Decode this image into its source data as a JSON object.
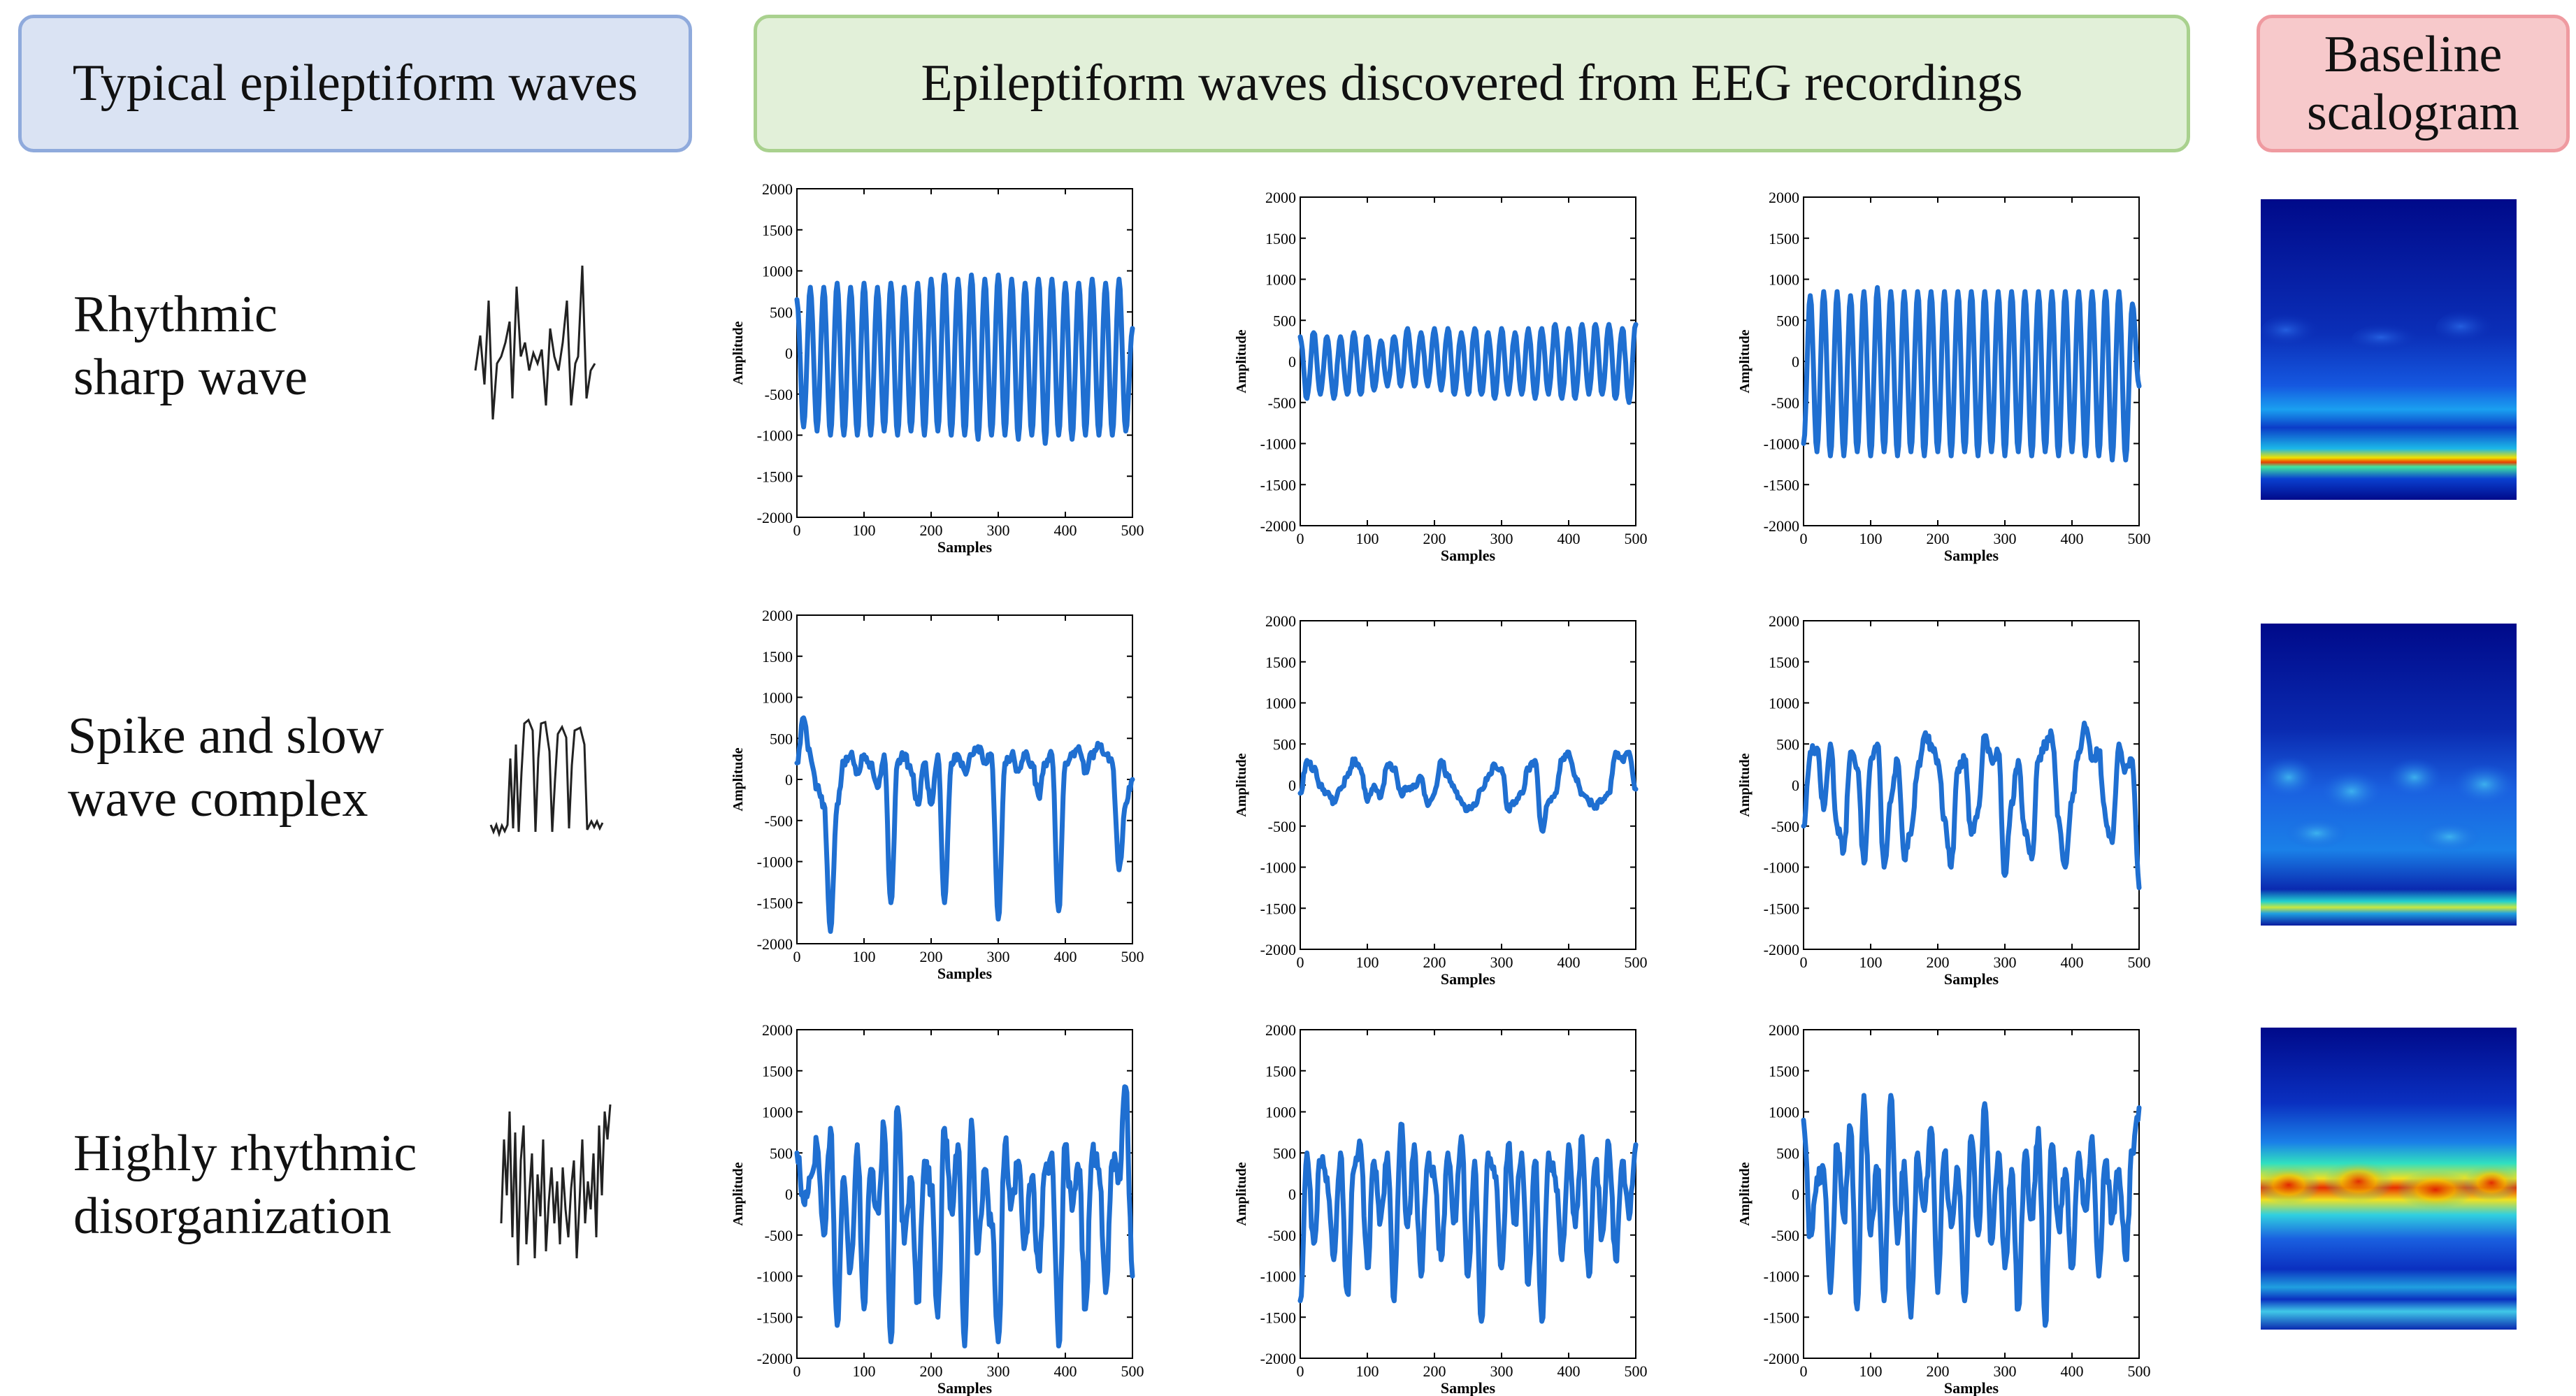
{
  "headers": {
    "typical": "Typical epileptiform waves",
    "discovered": "Epileptiform waves discovered from EEG recordings",
    "baseline_line1": "Baseline",
    "baseline_line2": "scalogram"
  },
  "rows": [
    {
      "line1": "Rhythmic",
      "line2": "sharp wave"
    },
    {
      "line1": "Spike and slow",
      "line2": "wave complex"
    },
    {
      "line1": "Highly rhythmic",
      "line2": "disorganization"
    }
  ],
  "axes": {
    "xlabel": "Samples",
    "ylabel": "Amplitude",
    "xticks": [
      0,
      100,
      200,
      300,
      400,
      500
    ],
    "yticks": [
      2000,
      1500,
      1000,
      500,
      0,
      -500,
      -1000,
      -1500,
      -2000
    ],
    "xlim": [
      0,
      500
    ],
    "ylim": [
      -2000,
      2000
    ]
  },
  "colors": {
    "signal": "#1f6fd1",
    "sketch": "#222222",
    "scalogram_bg": "#0a2a9a"
  },
  "chart_data": [
    {
      "type": "line",
      "row": 1,
      "col": 1,
      "xlabel": "Samples",
      "ylabel": "Amplitude",
      "xlim": [
        0,
        500
      ],
      "ylim": [
        -2000,
        2000
      ],
      "grid": false,
      "pattern": {
        "kind": "rhythmic",
        "period": 20,
        "pos": 850,
        "neg": -1000,
        "noise": 40,
        "offset": 0,
        "seed": 3
      },
      "x": [
        0,
        10,
        20,
        30,
        40,
        50,
        60,
        70,
        80,
        90,
        100,
        110,
        120,
        130,
        140,
        150,
        160,
        170,
        180,
        190,
        200,
        210,
        220,
        230,
        240,
        250,
        260,
        270,
        280,
        290,
        300,
        310,
        320,
        330,
        340,
        350,
        360,
        370,
        380,
        390,
        400,
        410,
        420,
        430,
        440,
        450,
        460,
        470,
        480,
        490,
        500
      ],
      "y": [
        650,
        -900,
        800,
        -950,
        800,
        -1000,
        850,
        -1000,
        800,
        -1000,
        850,
        -1000,
        800,
        -950,
        850,
        -1000,
        800,
        -950,
        850,
        -1000,
        900,
        -950,
        950,
        -1000,
        900,
        -1000,
        950,
        -1050,
        900,
        -1000,
        950,
        -1000,
        900,
        -1050,
        850,
        -1000,
        900,
        -1100,
        900,
        -1000,
        850,
        -1050,
        850,
        -1000,
        900,
        -1000,
        850,
        -1000,
        900,
        -950,
        300
      ]
    },
    {
      "type": "line",
      "row": 1,
      "col": 2,
      "xlabel": "Samples",
      "ylabel": "Amplitude",
      "xlim": [
        0,
        500
      ],
      "ylim": [
        -2000,
        2000
      ],
      "grid": false,
      "pattern": {
        "kind": "rhythmic",
        "period": 20,
        "pos": 350,
        "neg": -450,
        "noise": 60,
        "offset": 0,
        "seed": 7
      },
      "x": [
        0,
        10,
        20,
        30,
        40,
        50,
        60,
        70,
        80,
        90,
        100,
        110,
        120,
        130,
        140,
        150,
        160,
        170,
        180,
        190,
        200,
        210,
        220,
        230,
        240,
        250,
        260,
        270,
        280,
        290,
        300,
        310,
        320,
        330,
        340,
        350,
        360,
        370,
        380,
        390,
        400,
        410,
        420,
        430,
        440,
        450,
        460,
        470,
        480,
        490,
        500
      ],
      "y": [
        300,
        -450,
        350,
        -400,
        300,
        -450,
        300,
        -400,
        350,
        -400,
        300,
        -350,
        250,
        -300,
        300,
        -300,
        400,
        -300,
        350,
        -300,
        400,
        -350,
        400,
        -400,
        350,
        -400,
        400,
        -400,
        350,
        -450,
        400,
        -400,
        350,
        -400,
        400,
        -450,
        400,
        -400,
        450,
        -450,
        400,
        -450,
        450,
        -400,
        450,
        -400,
        450,
        -450,
        400,
        -500,
        450
      ]
    },
    {
      "type": "line",
      "row": 1,
      "col": 3,
      "xlabel": "Samples",
      "ylabel": "Amplitude",
      "xlim": [
        0,
        500
      ],
      "ylim": [
        -2000,
        2000
      ],
      "grid": false,
      "pattern": {
        "kind": "rhythmic",
        "period": 20,
        "pos": 850,
        "neg": -1100,
        "noise": 50,
        "offset": 0,
        "seed": 11
      },
      "x": [
        0,
        10,
        20,
        30,
        40,
        50,
        60,
        70,
        80,
        90,
        100,
        110,
        120,
        130,
        140,
        150,
        160,
        170,
        180,
        190,
        200,
        210,
        220,
        230,
        240,
        250,
        260,
        270,
        280,
        290,
        300,
        310,
        320,
        330,
        340,
        350,
        360,
        370,
        380,
        390,
        400,
        410,
        420,
        430,
        440,
        450,
        460,
        470,
        480,
        490,
        500
      ],
      "y": [
        -1000,
        800,
        -1100,
        850,
        -1150,
        850,
        -1150,
        800,
        -1100,
        850,
        -1150,
        900,
        -1100,
        850,
        -1150,
        850,
        -1100,
        850,
        -1150,
        850,
        -1100,
        850,
        -1150,
        850,
        -1100,
        850,
        -1150,
        850,
        -1100,
        850,
        -1150,
        850,
        -1100,
        850,
        -1150,
        850,
        -1100,
        850,
        -1150,
        850,
        -1100,
        850,
        -1150,
        850,
        -1150,
        850,
        -1200,
        850,
        -1200,
        700,
        -300
      ]
    },
    {
      "type": "line",
      "row": 2,
      "col": 1,
      "xlabel": "Samples",
      "ylabel": "Amplitude",
      "xlim": [
        0,
        500
      ],
      "ylim": [
        -2000,
        2000
      ],
      "grid": false,
      "pattern": {
        "kind": "spike",
        "period": 52,
        "pos": 350,
        "neg": -1500,
        "noise": 120,
        "offset": 0,
        "seed": 5
      },
      "x": [
        0,
        10,
        20,
        30,
        40,
        50,
        60,
        70,
        80,
        90,
        100,
        110,
        120,
        130,
        140,
        150,
        160,
        170,
        180,
        190,
        200,
        210,
        220,
        230,
        240,
        250,
        260,
        270,
        280,
        290,
        300,
        310,
        320,
        330,
        340,
        350,
        360,
        370,
        380,
        390,
        400,
        410,
        420,
        430,
        440,
        450,
        460,
        470,
        480,
        490,
        500
      ],
      "y": [
        200,
        750,
        300,
        -100,
        -300,
        -1850,
        -300,
        200,
        300,
        100,
        300,
        200,
        -100,
        300,
        -1500,
        200,
        300,
        100,
        -300,
        200,
        -300,
        300,
        -1500,
        200,
        300,
        100,
        300,
        400,
        200,
        300,
        -1700,
        200,
        300,
        100,
        300,
        200,
        -200,
        200,
        300,
        -1600,
        200,
        300,
        400,
        100,
        300,
        400,
        300,
        200,
        -1100,
        -300,
        0
      ]
    },
    {
      "type": "line",
      "row": 2,
      "col": 2,
      "xlabel": "Samples",
      "ylabel": "Amplitude",
      "xlim": [
        0,
        500
      ],
      "ylim": [
        -2000,
        2000
      ],
      "grid": false,
      "pattern": {
        "kind": "slow",
        "period": 75,
        "pos": 300,
        "neg": -300,
        "noise": 80,
        "offset": 0,
        "seed": 9
      },
      "x": [
        0,
        10,
        20,
        30,
        40,
        50,
        60,
        70,
        80,
        90,
        100,
        110,
        120,
        130,
        140,
        150,
        160,
        170,
        180,
        190,
        200,
        210,
        220,
        230,
        240,
        250,
        260,
        270,
        280,
        290,
        300,
        310,
        320,
        330,
        340,
        350,
        360,
        370,
        380,
        390,
        400,
        410,
        420,
        430,
        440,
        450,
        460,
        470,
        480,
        490,
        500
      ],
      "y": [
        -100,
        300,
        200,
        0,
        -100,
        -200,
        -50,
        100,
        300,
        200,
        -200,
        0,
        -150,
        250,
        200,
        -100,
        -50,
        0,
        100,
        -250,
        -100,
        300,
        100,
        -50,
        -200,
        -300,
        -250,
        -50,
        100,
        250,
        200,
        -300,
        -200,
        -100,
        200,
        300,
        -550,
        -200,
        -100,
        300,
        400,
        100,
        -100,
        -200,
        -250,
        -200,
        -100,
        400,
        300,
        400,
        -50
      ]
    },
    {
      "type": "line",
      "row": 2,
      "col": 3,
      "xlabel": "Samples",
      "ylabel": "Amplitude",
      "xlim": [
        0,
        500
      ],
      "ylim": [
        -2000,
        2000
      ],
      "grid": false,
      "pattern": {
        "kind": "spike",
        "period": 48,
        "pos": 450,
        "neg": -1000,
        "noise": 150,
        "offset": 0,
        "seed": 13
      },
      "x": [
        0,
        10,
        20,
        30,
        40,
        50,
        60,
        70,
        80,
        90,
        100,
        110,
        120,
        130,
        140,
        150,
        160,
        170,
        180,
        190,
        200,
        210,
        220,
        230,
        240,
        250,
        260,
        270,
        280,
        290,
        300,
        310,
        320,
        330,
        340,
        350,
        360,
        370,
        380,
        390,
        400,
        410,
        420,
        430,
        440,
        450,
        460,
        470,
        480,
        490,
        500
      ],
      "y": [
        -500,
        400,
        450,
        -300,
        500,
        -500,
        -800,
        400,
        200,
        -950,
        300,
        500,
        -1000,
        -200,
        300,
        -900,
        -600,
        200,
        600,
        500,
        300,
        -400,
        -1000,
        200,
        300,
        -600,
        -300,
        600,
        300,
        400,
        -1100,
        -200,
        300,
        -600,
        -900,
        300,
        500,
        600,
        -400,
        -1000,
        -200,
        400,
        700,
        300,
        400,
        -400,
        -700,
        500,
        200,
        300,
        -1250
      ]
    },
    {
      "type": "line",
      "row": 3,
      "col": 1,
      "xlabel": "Samples",
      "ylabel": "Amplitude",
      "xlim": [
        0,
        500
      ],
      "ylim": [
        -2000,
        2000
      ],
      "grid": false,
      "pattern": {
        "kind": "disorg",
        "period": 12,
        "pos": 900,
        "neg": -1800,
        "noise": 300,
        "offset": 0,
        "seed": 17
      },
      "x": [
        0,
        10,
        20,
        30,
        40,
        50,
        60,
        70,
        80,
        90,
        100,
        110,
        120,
        130,
        140,
        150,
        160,
        170,
        180,
        190,
        200,
        210,
        220,
        230,
        240,
        250,
        260,
        270,
        280,
        290,
        300,
        310,
        320,
        330,
        340,
        350,
        360,
        370,
        380,
        390,
        400,
        410,
        420,
        430,
        440,
        450,
        460,
        470,
        480,
        490,
        500
      ],
      "y": [
        500,
        -100,
        200,
        600,
        -500,
        800,
        -1600,
        200,
        -900,
        600,
        -1400,
        300,
        -200,
        800,
        -1800,
        1050,
        -600,
        200,
        -1300,
        400,
        100,
        -1500,
        800,
        -200,
        600,
        -1850,
        900,
        -700,
        300,
        -400,
        -1800,
        600,
        -100,
        400,
        -600,
        200,
        -900,
        300,
        500,
        -1850,
        600,
        -200,
        300,
        -1400,
        500,
        300,
        -1200,
        400,
        200,
        1300,
        -1000
      ]
    },
    {
      "type": "line",
      "row": 3,
      "col": 2,
      "xlabel": "Samples",
      "ylabel": "Amplitude",
      "xlim": [
        0,
        500
      ],
      "ylim": [
        -2000,
        2000
      ],
      "grid": false,
      "pattern": {
        "kind": "disorg",
        "period": 12,
        "pos": 750,
        "neg": -1400,
        "noise": 250,
        "offset": 0,
        "seed": 21
      },
      "x": [
        0,
        10,
        20,
        30,
        40,
        50,
        60,
        70,
        80,
        90,
        100,
        110,
        120,
        130,
        140,
        150,
        160,
        170,
        180,
        190,
        200,
        210,
        220,
        230,
        240,
        250,
        260,
        270,
        280,
        290,
        300,
        310,
        320,
        330,
        340,
        350,
        360,
        370,
        380,
        390,
        400,
        410,
        420,
        430,
        440,
        450,
        460,
        470,
        480,
        490,
        500
      ],
      "y": [
        -1300,
        500,
        -600,
        400,
        200,
        -800,
        500,
        -1200,
        300,
        600,
        -900,
        400,
        -300,
        500,
        -1300,
        850,
        -400,
        600,
        -1000,
        400,
        200,
        -800,
        500,
        -300,
        700,
        -1000,
        400,
        -1550,
        500,
        200,
        -900,
        600,
        -300,
        500,
        -1100,
        400,
        -1550,
        500,
        200,
        -800,
        600,
        -400,
        700,
        -1000,
        400,
        -500,
        600,
        -800,
        400,
        -300,
        600
      ]
    },
    {
      "type": "line",
      "row": 3,
      "col": 3,
      "xlabel": "Samples",
      "ylabel": "Amplitude",
      "xlim": [
        0,
        500
      ],
      "ylim": [
        -2000,
        2000
      ],
      "grid": false,
      "pattern": {
        "kind": "disorg",
        "period": 12,
        "pos": 850,
        "neg": -1300,
        "noise": 250,
        "offset": 0,
        "seed": 25
      },
      "x": [
        0,
        10,
        20,
        30,
        40,
        50,
        60,
        70,
        80,
        90,
        100,
        110,
        120,
        130,
        140,
        150,
        160,
        170,
        180,
        190,
        200,
        210,
        220,
        230,
        240,
        250,
        260,
        270,
        280,
        290,
        300,
        310,
        320,
        330,
        340,
        350,
        360,
        370,
        380,
        390,
        400,
        410,
        420,
        430,
        440,
        450,
        460,
        470,
        480,
        490,
        500
      ],
      "y": [
        900,
        -500,
        200,
        300,
        -1200,
        600,
        -300,
        800,
        -1400,
        1200,
        -500,
        300,
        -1300,
        1200,
        -600,
        400,
        -1500,
        500,
        -200,
        800,
        -1200,
        500,
        -400,
        300,
        -1300,
        700,
        -500,
        1100,
        -600,
        500,
        -900,
        300,
        -1400,
        500,
        -300,
        800,
        -1600,
        600,
        -400,
        300,
        -900,
        500,
        -200,
        700,
        -1000,
        400,
        -300,
        300,
        -800,
        500,
        1050
      ]
    }
  ],
  "scalograms": [
    {
      "row": 1,
      "style": "bottom-band"
    },
    {
      "row": 2,
      "style": "mid-mottled"
    },
    {
      "row": 3,
      "style": "hot-bands"
    }
  ]
}
